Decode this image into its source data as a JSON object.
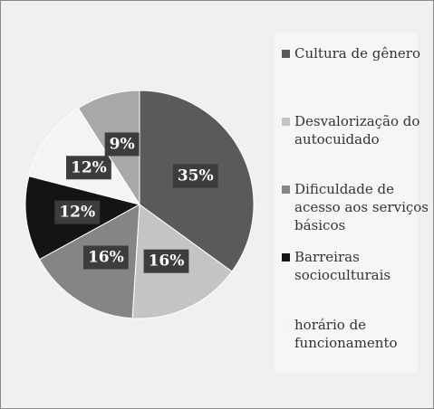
{
  "chart_data": {
    "type": "pie",
    "categories": [
      "Cultura de gênero",
      "Desvalorização do autocuidado",
      "Dificuldade de acesso aos serviços básicos",
      "Barreiras socioculturais",
      "horário de funcionamento",
      null
    ],
    "values": [
      35,
      16,
      16,
      12,
      12,
      9
    ],
    "value_labels": [
      "35%",
      "16%",
      "16%",
      "12%",
      "12%",
      "9%"
    ],
    "colors": [
      "#5a5a5a",
      "#c4c4c4",
      "#858585",
      "#141414",
      "#f4f4f4",
      "#a8a8a8"
    ],
    "legend": "right"
  }
}
